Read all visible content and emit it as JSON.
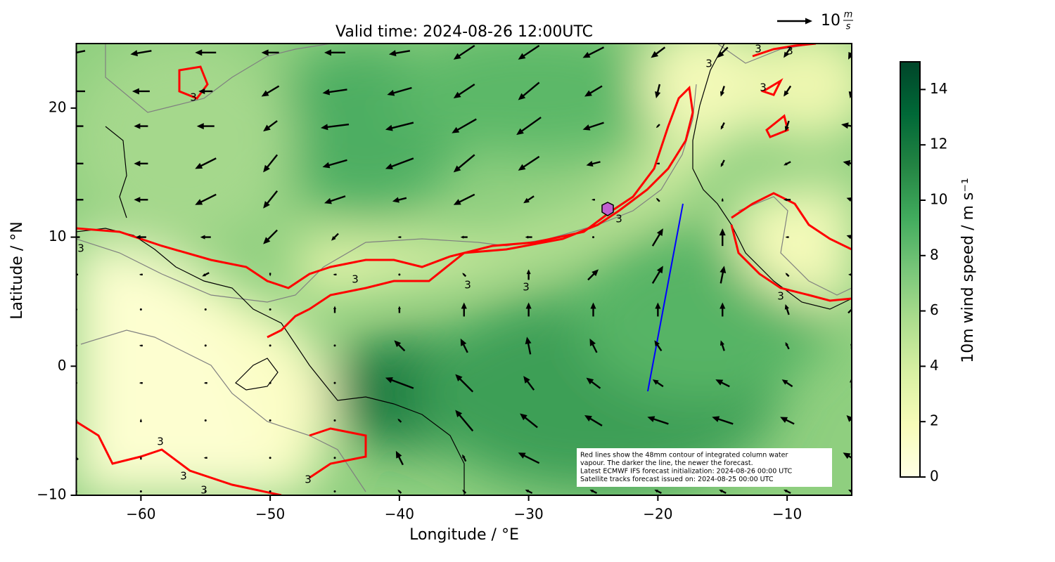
{
  "chart_data": {
    "type": "vector-map",
    "title": "Valid time: 2024-08-26 12:00UTC",
    "xlabel": "Longitude / °E",
    "ylabel": "Latitude / °N",
    "xlim": [
      -65,
      -5
    ],
    "ylim": [
      -10,
      25
    ],
    "xticks": [
      {
        "value": -60,
        "label": "−60"
      },
      {
        "value": -50,
        "label": "−50"
      },
      {
        "value": -40,
        "label": "−40"
      },
      {
        "value": -30,
        "label": "−30"
      },
      {
        "value": -20,
        "label": "−20"
      },
      {
        "value": -10,
        "label": "−10"
      }
    ],
    "yticks": [
      {
        "value": -10,
        "label": "−10"
      },
      0,
      10,
      20
    ],
    "colorbar": {
      "label": "10m wind speed / m s⁻¹",
      "lim": [
        0,
        15
      ],
      "ticks": [
        0,
        2,
        4,
        6,
        8,
        10,
        12,
        14
      ],
      "colors": [
        "#ffffe5",
        "#f7fcb9",
        "#d9f0a3",
        "#addd8e",
        "#78c679",
        "#41ab5d",
        "#238443",
        "#006837",
        "#004529"
      ]
    },
    "key": {
      "value": 10,
      "unit_num": "m",
      "unit_den": "s"
    },
    "note": [
      "Red lines show the 48mm contour of integrated column water",
      "vapour. The darker the line, the newer the forecast.",
      "Latest ECMWF IFS forecast initialization: 2024-08-26 00:00 UTC",
      "Satellite tracks forecast issued on: 2024-08-25 00:00 UTC"
    ],
    "contour_label": "3",
    "wind": {
      "lon": [
        -65,
        -60,
        -55,
        -50,
        -45,
        -40,
        -35,
        -30,
        -25,
        -20,
        -15,
        -10,
        -5
      ],
      "lat": [
        24.3,
        21.3,
        18.6,
        15.7,
        12.9,
        10,
        7.1,
        4.4,
        1.6,
        -1.3,
        -4.2,
        -7.1,
        -9.7
      ],
      "u": [
        [
          -5,
          -6,
          -6,
          -5,
          -6,
          -6,
          -6,
          -6,
          -6,
          -4,
          -3,
          -2,
          -2
        ],
        [
          -5,
          -5,
          -4,
          -5,
          -7,
          -7,
          -6,
          -6,
          -5,
          -1,
          -1,
          -2,
          -1
        ],
        [
          -4,
          -4,
          -5,
          -4,
          -8,
          -8,
          -7,
          -7,
          -6,
          -1,
          -1,
          -1,
          -6
        ],
        [
          -4,
          -4,
          -6,
          -4,
          -7,
          -8,
          -6,
          -6,
          -4,
          -1,
          -1,
          -2,
          -5
        ],
        [
          -4,
          -4,
          -6,
          -4,
          -6,
          -4,
          -6,
          -3,
          -1,
          -1,
          0,
          -2,
          -3
        ],
        [
          -2,
          -3,
          -3,
          -4,
          -2,
          -1,
          -2,
          -2,
          0,
          3,
          0,
          -1,
          -3
        ],
        [
          -1,
          -1,
          -2,
          0,
          -1,
          0,
          -1,
          0,
          3,
          3,
          1,
          -1,
          -2
        ],
        [
          0,
          0,
          0,
          0,
          0,
          0,
          0,
          0,
          0,
          0,
          0,
          -1,
          2
        ],
        [
          0,
          -1,
          0,
          0,
          0,
          -3,
          -2,
          -1,
          -2,
          -2,
          -1,
          -1,
          0
        ],
        [
          0,
          -1,
          -1,
          0,
          0,
          -8,
          -5,
          -3,
          -4,
          -3,
          -4,
          -3,
          0
        ],
        [
          0,
          0,
          0,
          0,
          0,
          -1,
          -5,
          -5,
          -5,
          -6,
          -6,
          -4,
          -3
        ],
        [
          -1,
          0,
          -1,
          0,
          0,
          -2,
          -1,
          -6,
          -6,
          -6,
          -5,
          -5,
          -5
        ],
        [
          0,
          0,
          0,
          0,
          0,
          -1,
          -1,
          -2,
          -2,
          -2,
          -2,
          -2,
          -2
        ]
      ],
      "v": [
        [
          -1,
          -1,
          0,
          0,
          0,
          -1,
          -4,
          -4,
          -3,
          -3,
          -3,
          -3,
          -4
        ],
        [
          0,
          0,
          0,
          -3,
          -1,
          -2,
          -4,
          -5,
          -3,
          -4,
          -3,
          -3,
          -4
        ],
        [
          0,
          0,
          0,
          -3,
          -1,
          -2,
          -4,
          -5,
          -2,
          -1,
          -2,
          -3,
          1
        ],
        [
          0,
          0,
          -3,
          -5,
          -2,
          -3,
          -5,
          -4,
          -1,
          0,
          -2,
          -1,
          1
        ],
        [
          0,
          0,
          -3,
          -5,
          -2,
          -1,
          -3,
          -2,
          0,
          1,
          1,
          0,
          1
        ],
        [
          0,
          0,
          0,
          -4,
          -2,
          0,
          0,
          0,
          0,
          5,
          5,
          0,
          1
        ],
        [
          0,
          0,
          -1,
          -1,
          0,
          0,
          1,
          3,
          3,
          5,
          5,
          1,
          0
        ],
        [
          0,
          0,
          0,
          0,
          2,
          2,
          4,
          4,
          4,
          4,
          4,
          3,
          2
        ],
        [
          0,
          0,
          0,
          0,
          0,
          3,
          4,
          5,
          4,
          3,
          3,
          2,
          2
        ],
        [
          0,
          0,
          0,
          0,
          0,
          3,
          5,
          4,
          3,
          2,
          2,
          2,
          3
        ],
        [
          0,
          1,
          0,
          0,
          0,
          1,
          6,
          4,
          3,
          2,
          2,
          2,
          3
        ],
        [
          1,
          1,
          0,
          0,
          0,
          4,
          2,
          3,
          3,
          3,
          3,
          3,
          3
        ],
        [
          0,
          0,
          0,
          0,
          0,
          1,
          1,
          1,
          1,
          1,
          1,
          1,
          1
        ]
      ]
    }
  }
}
